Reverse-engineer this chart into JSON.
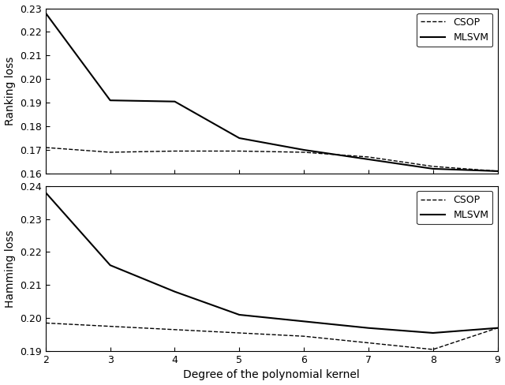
{
  "x": [
    2,
    3,
    4,
    5,
    6,
    7,
    8,
    9
  ],
  "ranking_mlsvm": [
    0.228,
    0.191,
    0.1905,
    0.175,
    0.17,
    0.166,
    0.162,
    0.161
  ],
  "ranking_csop": [
    0.171,
    0.169,
    0.1695,
    0.1695,
    0.169,
    0.167,
    0.163,
    0.161
  ],
  "hamming_mlsvm": [
    0.238,
    0.216,
    0.208,
    0.201,
    0.199,
    0.197,
    0.1955,
    0.197
  ],
  "hamming_csop": [
    0.1985,
    0.1975,
    0.1965,
    0.1955,
    0.1945,
    0.1925,
    0.1905,
    0.197
  ],
  "ranking_ylim": [
    0.16,
    0.23
  ],
  "ranking_yticks": [
    0.16,
    0.17,
    0.18,
    0.19,
    0.2,
    0.21,
    0.22,
    0.23
  ],
  "hamming_ylim": [
    0.19,
    0.24
  ],
  "hamming_yticks": [
    0.19,
    0.2,
    0.21,
    0.22,
    0.23,
    0.24
  ],
  "xlabel": "Degree of the polynomial kernel",
  "ylabel_top": "Ranking loss",
  "ylabel_bottom": "Hamming loss",
  "legend_labels": [
    "CSOP",
    "MLSVM"
  ],
  "line_color": "#000000",
  "background_color": "#ffffff"
}
